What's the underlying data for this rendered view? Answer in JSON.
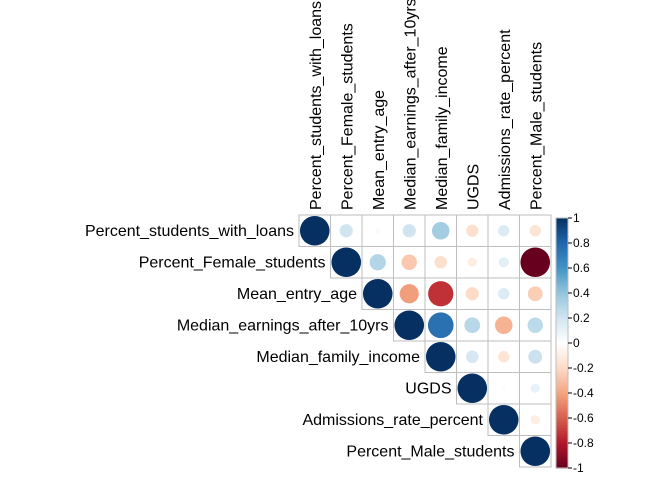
{
  "chart_data": {
    "type": "heatmap",
    "variant": "correlation-matrix-upper-circles",
    "variables": [
      "Percent_students_with_loans",
      "Percent_Female_students",
      "Mean_entry_age",
      "Median_earnings_after_10yrs",
      "Median_family_income",
      "UGDS",
      "Admissions_rate_percent",
      "Percent_Male_students"
    ],
    "matrix": [
      [
        1.0,
        0.2,
        0.03,
        0.2,
        0.35,
        -0.17,
        0.15,
        -0.15
      ],
      [
        0.2,
        1.0,
        0.3,
        -0.27,
        -0.18,
        -0.1,
        0.12,
        -1.0
      ],
      [
        0.03,
        0.3,
        1.0,
        -0.42,
        -0.73,
        -0.2,
        0.15,
        -0.25
      ],
      [
        0.2,
        -0.27,
        -0.42,
        1.0,
        0.75,
        0.28,
        -0.35,
        0.27
      ],
      [
        0.35,
        -0.18,
        -0.73,
        0.75,
        1.0,
        0.18,
        -0.15,
        0.22
      ],
      [
        -0.17,
        -0.1,
        -0.2,
        0.28,
        0.18,
        1.0,
        -0.02,
        0.1
      ],
      [
        0.15,
        0.12,
        0.15,
        -0.35,
        -0.15,
        -0.02,
        1.0,
        -0.1
      ],
      [
        -0.15,
        -1.0,
        -0.25,
        0.27,
        0.22,
        0.1,
        -0.1,
        1.0
      ]
    ],
    "color_scale": {
      "range": [
        -1,
        1
      ],
      "stops": [
        "#67001F",
        "#B2182B",
        "#D6604D",
        "#F4A582",
        "#FDDBC7",
        "#FFFFFF",
        "#D1E5F0",
        "#92C5DE",
        "#4393C3",
        "#2166AC",
        "#053061"
      ]
    },
    "legend": {
      "position": "right",
      "ticks": [
        "1",
        "0.8",
        "0.6",
        "0.4",
        "0.2",
        "0",
        "-0.2",
        "-0.4",
        "-0.6",
        "-0.8",
        "-1"
      ]
    },
    "grid": true
  }
}
